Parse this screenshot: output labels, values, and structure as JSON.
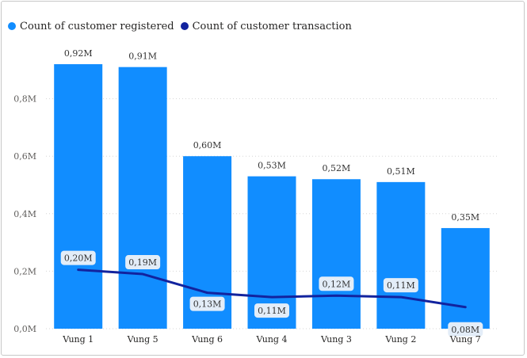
{
  "colors": {
    "registered": "#118dff",
    "transaction": "#12239e",
    "grid": "#d6d6d6",
    "label_bg": "#e3edf8"
  },
  "legend": {
    "registered_label": "Count of customer registered",
    "transaction_label": "Count of customer transaction"
  },
  "chart_data": {
    "type": "bar",
    "categories": [
      "Vung 1",
      "Vung 5",
      "Vung 6",
      "Vung 4",
      "Vung 3",
      "Vung 2",
      "Vung 7"
    ],
    "series": [
      {
        "name": "Count of customer registered",
        "type": "bar",
        "values": [
          0.92,
          0.91,
          0.6,
          0.53,
          0.52,
          0.51,
          0.35
        ],
        "labels": [
          "0,92M",
          "0,91M",
          "0,60M",
          "0,53M",
          "0,52M",
          "0,51M",
          "0,35M"
        ]
      },
      {
        "name": "Count of customer transaction",
        "type": "line",
        "values": [
          0.205,
          0.19,
          0.125,
          0.11,
          0.115,
          0.11,
          0.075
        ],
        "labels": [
          "0,20M",
          "0,19M",
          "0,13M",
          "0,11M",
          "0,12M",
          "0,11M",
          "0,08M"
        ]
      }
    ],
    "y_ticks": [
      0,
      0.2,
      0.4,
      0.6,
      0.8
    ],
    "y_tick_labels": [
      "0,0M",
      "0,2M",
      "0,4M",
      "0,6M",
      "0,8M"
    ],
    "ylim": [
      0,
      1.0
    ],
    "grid": true,
    "legend_position": "top-left"
  }
}
